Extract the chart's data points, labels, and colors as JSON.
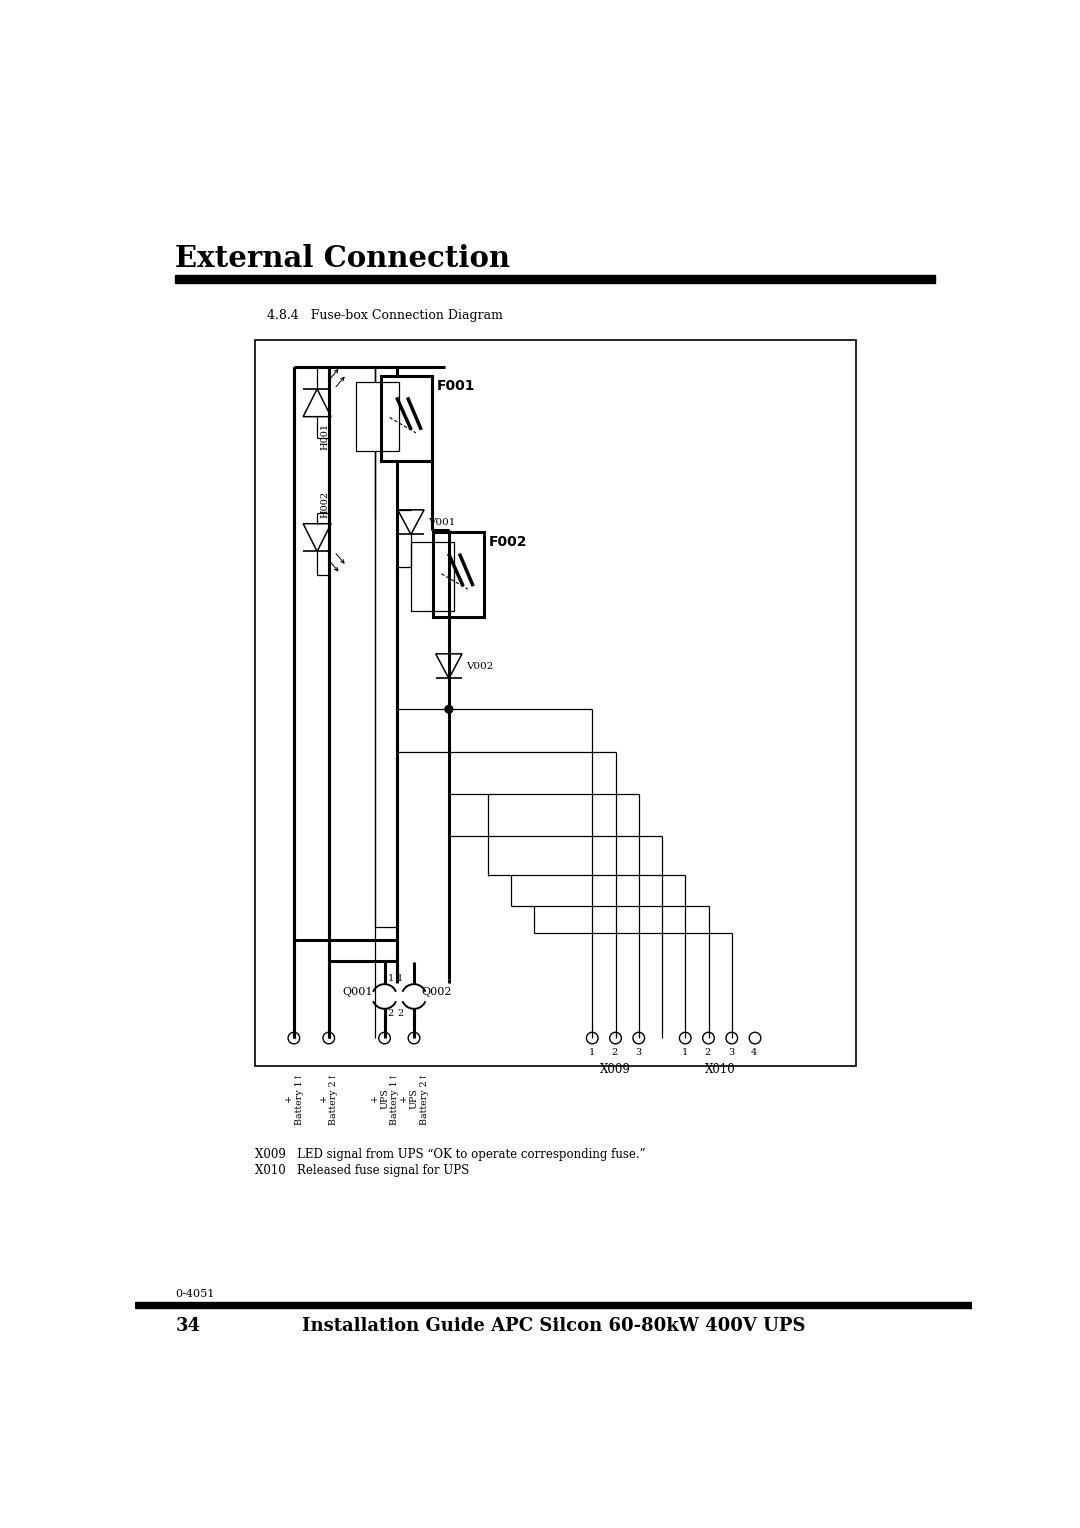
{
  "page_title": "External Connection",
  "section_title": "4.8.4   Fuse-box Connection Diagram",
  "footer_left": "0-4051",
  "footer_right": "Installation Guide APC Silcon 60-80kW 400V UPS",
  "footer_page": "34",
  "bg_color": "#ffffff",
  "text_color": "#000000",
  "note1": "X009   LED signal from UPS “OK to operate corresponding fuse.”",
  "note2": "X010   Released fuse signal for UPS"
}
